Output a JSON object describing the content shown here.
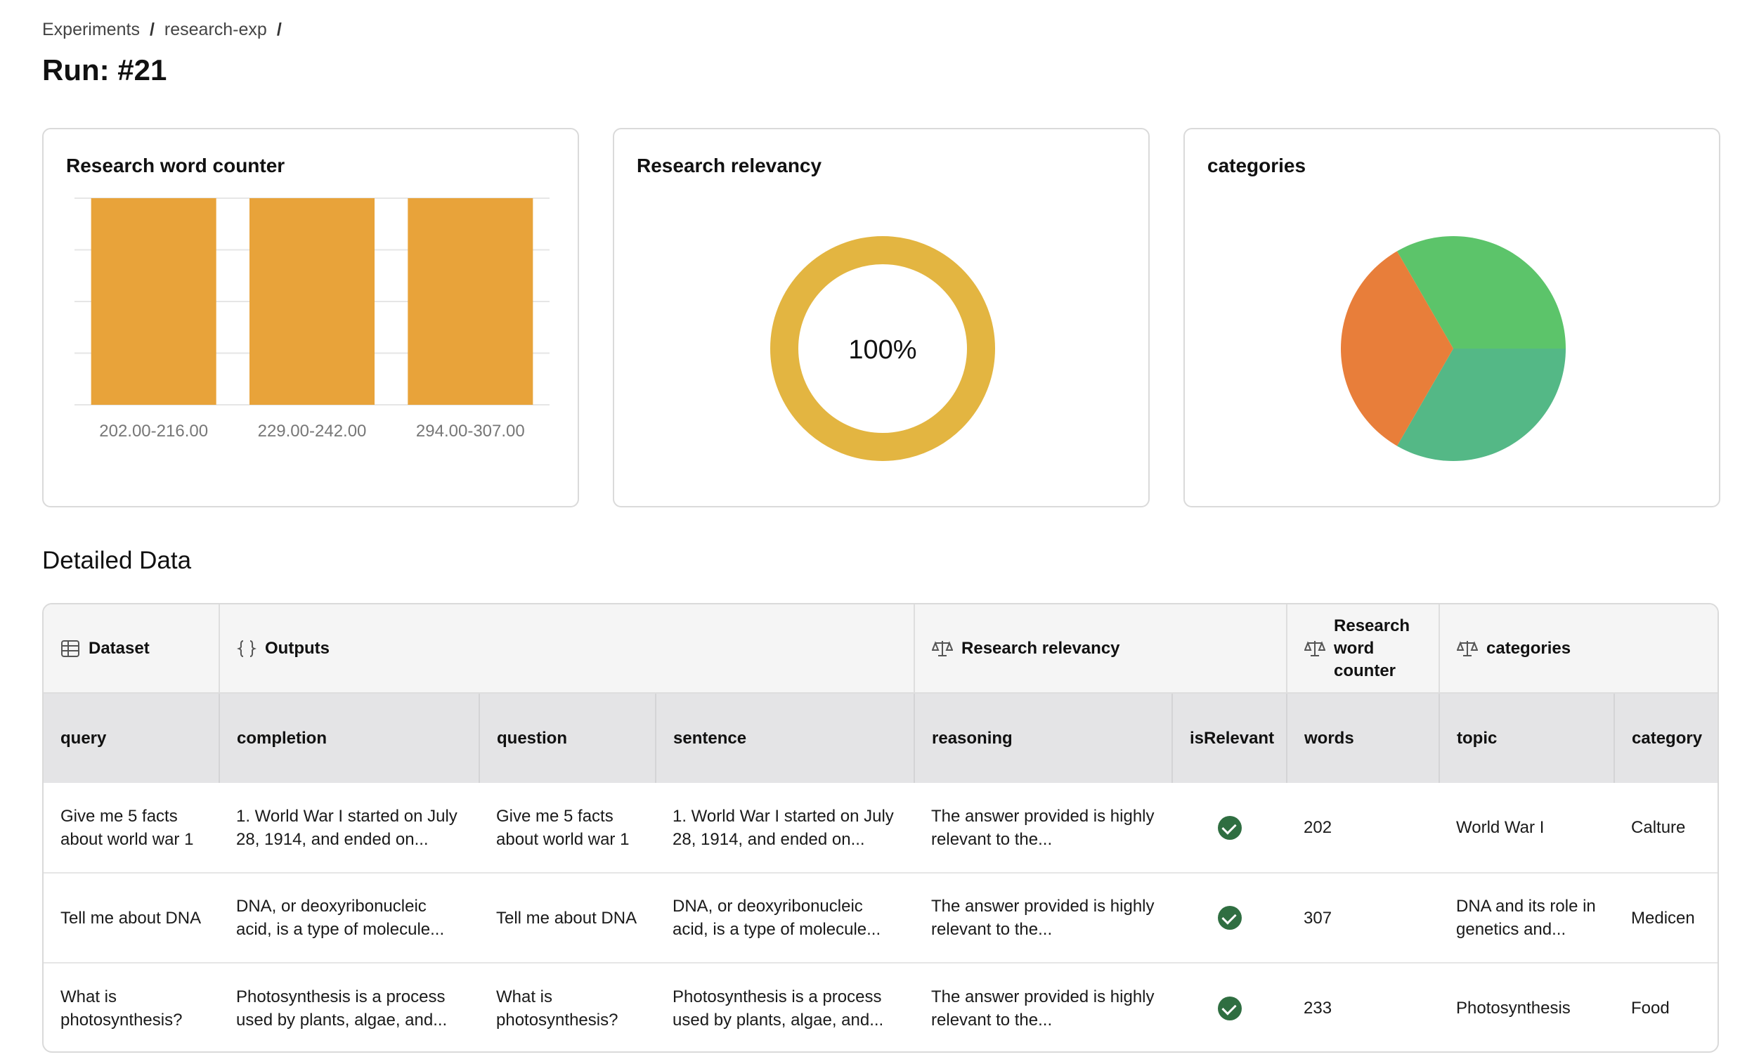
{
  "breadcrumb": {
    "items": [
      "Experiments",
      "research-exp"
    ],
    "separator": "/"
  },
  "page_title": "Run: #21",
  "cards": {
    "word_counter": {
      "title": "Research word counter"
    },
    "relevancy": {
      "title": "Research relevancy",
      "value_label": "100%"
    },
    "categories": {
      "title": "categories"
    }
  },
  "chart_data": [
    {
      "type": "bar",
      "title": "Research word counter",
      "categories": [
        "202.00-216.00",
        "229.00-242.00",
        "294.00-307.00"
      ],
      "values": [
        1,
        1,
        1
      ],
      "ylim": [
        0,
        1
      ],
      "grid": true,
      "color": "#E8A33A"
    },
    {
      "type": "pie",
      "title": "Research relevancy",
      "donut": true,
      "values": [
        100
      ],
      "center_label": "100%",
      "colors": [
        "#E3B541"
      ]
    },
    {
      "type": "pie",
      "title": "categories",
      "values": [
        1,
        1,
        1
      ],
      "colors": [
        "#5CC46A",
        "#54B886",
        "#E87E3A"
      ]
    }
  ],
  "detailed": {
    "title": "Detailed Data",
    "groups": {
      "dataset": "Dataset",
      "outputs": "Outputs",
      "relevancy": "Research relevancy",
      "word_counter": "Research word counter",
      "categories": "categories"
    },
    "columns": {
      "query": "query",
      "completion": "completion",
      "question": "question",
      "sentence": "sentence",
      "reasoning": "reasoning",
      "isRelevant": "isRelevant",
      "words": "words",
      "topic": "topic",
      "category": "category"
    },
    "rows": [
      {
        "query": "Give me 5 facts about world war 1",
        "completion": "1. World War I started on July 28, 1914, and ended on...",
        "question": "Give me 5 facts about world war 1",
        "sentence": "1. World War I started on July 28, 1914, and ended on...",
        "reasoning": "The answer provided is highly relevant to the...",
        "isRelevant": true,
        "words": "202",
        "topic": "World War I",
        "category": "Calture"
      },
      {
        "query": "Tell me about DNA",
        "completion": "DNA, or deoxyribonucleic acid, is a type of molecule...",
        "question": "Tell me about DNA",
        "sentence": "DNA, or deoxyribonucleic acid, is a type of molecule...",
        "reasoning": "The answer provided is highly relevant to the...",
        "isRelevant": true,
        "words": "307",
        "topic": "DNA and its role in genetics and...",
        "category": "Medicen"
      },
      {
        "query": "What is photosynthesis?",
        "completion": "Photosynthesis is a process used by plants, algae, and...",
        "question": "What is photosynthesis?",
        "sentence": "Photosynthesis is a process used by plants, algae, and...",
        "reasoning": "The answer provided is highly relevant to the...",
        "isRelevant": true,
        "words": "233",
        "topic": "Photosynthesis",
        "category": "Food"
      }
    ]
  }
}
